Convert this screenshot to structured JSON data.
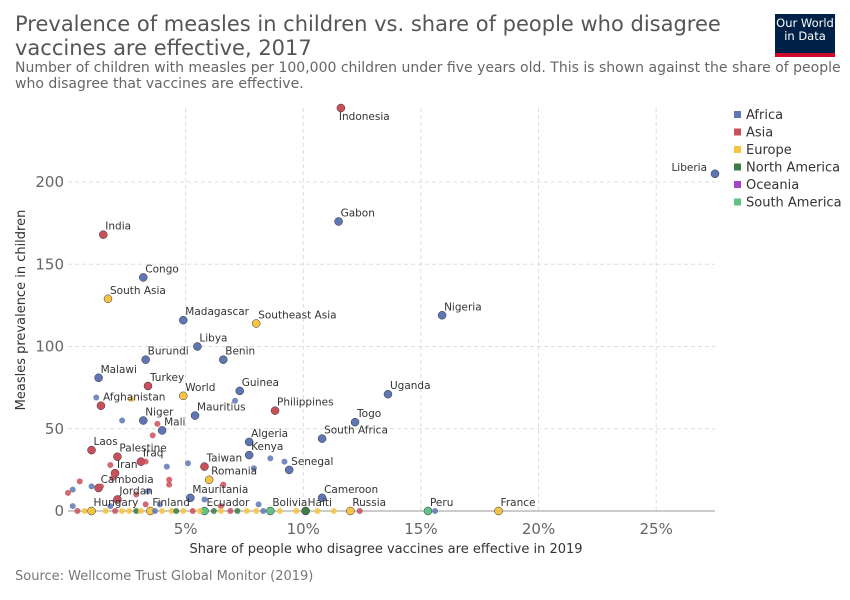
{
  "header": {
    "title_lines": [
      "Prevalence of measles in children vs. share of people who disagree",
      "vaccines are effective, 2017"
    ],
    "subtitle_lines": [
      "Number of children with measles per 100,000 children under five years old. This is shown against the share of people",
      "who disagree that vaccines are effective."
    ],
    "logo_lines": [
      "Our World",
      "in Data"
    ]
  },
  "footer": {
    "source": "Source: Wellcome Trust Global Monitor (2019)"
  },
  "colors": {
    "Africa": "#5e77b4",
    "Asia": "#c9505b",
    "Europe": "#f6c444",
    "North America": "#3f7a48",
    "Oceania": "#a447c6",
    "South America": "#61c287"
  },
  "chart_data": {
    "type": "scatter",
    "xlabel": "Share of people who disagree vaccines are effective in 2019",
    "ylabel": "Measles prevalence in children",
    "xlim": [
      0,
      27.5
    ],
    "ylim": [
      0,
      245
    ],
    "xticks": [
      5,
      10,
      15,
      20,
      25
    ],
    "xtick_labels": [
      "5%",
      "10%",
      "15%",
      "20%",
      "25%"
    ],
    "yticks": [
      0,
      50,
      100,
      150,
      200
    ],
    "ytick_labels": [
      "0",
      "50",
      "100",
      "150",
      "200"
    ],
    "grid": true,
    "legend": [
      "Africa",
      "Asia",
      "Europe",
      "North America",
      "Oceania",
      "South America"
    ],
    "legend_position": "right",
    "points": [
      {
        "label": "Indonesia",
        "x": 11.6,
        "y": 245,
        "region": "Asia",
        "major": true
      },
      {
        "label": "Liberia",
        "x": 27.5,
        "y": 205,
        "region": "Africa",
        "major": true
      },
      {
        "label": "Gabon",
        "x": 11.5,
        "y": 176,
        "region": "Africa",
        "major": true
      },
      {
        "label": "India",
        "x": 1.5,
        "y": 168,
        "region": "Asia",
        "major": true
      },
      {
        "label": "Congo",
        "x": 3.2,
        "y": 142,
        "region": "Africa",
        "major": true
      },
      {
        "label": "South Asia",
        "x": 1.7,
        "y": 129,
        "region": "Europe",
        "major": true
      },
      {
        "label": "Nigeria",
        "x": 15.9,
        "y": 119,
        "region": "Africa",
        "major": true
      },
      {
        "label": "Madagascar",
        "x": 4.9,
        "y": 116,
        "region": "Africa",
        "major": true
      },
      {
        "label": "Southeast Asia",
        "x": 8.0,
        "y": 114,
        "region": "Europe",
        "major": true
      },
      {
        "label": "Libya",
        "x": 5.5,
        "y": 100,
        "region": "Africa",
        "major": true
      },
      {
        "label": "Burundi",
        "x": 3.3,
        "y": 92,
        "region": "Africa",
        "major": true
      },
      {
        "label": "Benin",
        "x": 6.6,
        "y": 92,
        "region": "Africa",
        "major": true
      },
      {
        "label": "Malawi",
        "x": 1.3,
        "y": 81,
        "region": "Africa",
        "major": true
      },
      {
        "label": "Turkey",
        "x": 3.4,
        "y": 76,
        "region": "Asia",
        "major": true
      },
      {
        "label": "Guinea",
        "x": 7.3,
        "y": 73,
        "region": "Africa",
        "major": true
      },
      {
        "label": "Uganda",
        "x": 13.6,
        "y": 71,
        "region": "Africa",
        "major": true
      },
      {
        "label": "World",
        "x": 4.9,
        "y": 70,
        "region": "Europe",
        "major": true
      },
      {
        "label": "Afghanistan",
        "x": 1.4,
        "y": 64,
        "region": "Asia",
        "major": true
      },
      {
        "label": "Philippines",
        "x": 8.8,
        "y": 61,
        "region": "Asia",
        "major": true
      },
      {
        "label": "Mauritius",
        "x": 5.4,
        "y": 58,
        "region": "Africa",
        "major": true
      },
      {
        "label": "Niger",
        "x": 3.2,
        "y": 55,
        "region": "Africa",
        "major": true
      },
      {
        "label": "Togo",
        "x": 12.2,
        "y": 54,
        "region": "Africa",
        "major": true
      },
      {
        "label": "Mali",
        "x": 4.0,
        "y": 49,
        "region": "Africa",
        "major": true
      },
      {
        "label": "South Africa",
        "x": 10.8,
        "y": 44,
        "region": "Africa",
        "major": true
      },
      {
        "label": "Algeria",
        "x": 7.7,
        "y": 42,
        "region": "Africa",
        "major": true
      },
      {
        "label": "Laos",
        "x": 1.0,
        "y": 37,
        "region": "Asia",
        "major": true
      },
      {
        "label": "Kenya",
        "x": 7.7,
        "y": 34,
        "region": "Africa",
        "major": true
      },
      {
        "label": "Palestine",
        "x": 2.1,
        "y": 33,
        "region": "Asia",
        "major": true
      },
      {
        "label": "Iraq",
        "x": 3.1,
        "y": 30,
        "region": "Asia",
        "major": true
      },
      {
        "label": "Taiwan",
        "x": 5.8,
        "y": 27,
        "region": "Asia",
        "major": true
      },
      {
        "label": "Senegal",
        "x": 9.4,
        "y": 25,
        "region": "Africa",
        "major": true
      },
      {
        "label": "Iran",
        "x": 2.0,
        "y": 23,
        "region": "Asia",
        "major": true
      },
      {
        "label": "Romania",
        "x": 6.0,
        "y": 19,
        "region": "Europe",
        "major": true
      },
      {
        "label": "Cambodia",
        "x": 1.3,
        "y": 14,
        "region": "Asia",
        "major": true
      },
      {
        "label": "Jordan",
        "x": 2.1,
        "y": 7,
        "region": "Asia",
        "major": true
      },
      {
        "label": "Mauritania",
        "x": 5.2,
        "y": 8,
        "region": "Africa",
        "major": true
      },
      {
        "label": "Cameroon",
        "x": 10.8,
        "y": 8,
        "region": "Africa",
        "major": true
      },
      {
        "label": "Hungary",
        "x": 1.0,
        "y": 0,
        "region": "Europe",
        "major": true
      },
      {
        "label": "Finland",
        "x": 3.5,
        "y": 0,
        "region": "Europe",
        "major": true
      },
      {
        "label": "Ecuador",
        "x": 5.8,
        "y": 0,
        "region": "South America",
        "major": true
      },
      {
        "label": "Bolivia",
        "x": 8.6,
        "y": 0,
        "region": "South America",
        "major": true
      },
      {
        "label": "Haiti",
        "x": 10.1,
        "y": 0,
        "region": "North America",
        "major": true
      },
      {
        "label": "Russia",
        "x": 12.0,
        "y": 0,
        "region": "Europe",
        "major": true
      },
      {
        "label": "Peru",
        "x": 15.3,
        "y": 0,
        "region": "South America",
        "major": true
      },
      {
        "label": "France",
        "x": 18.3,
        "y": 0,
        "region": "Europe",
        "major": true
      },
      {
        "label": "",
        "x": 2.7,
        "y": 68,
        "region": "Europe",
        "major": false
      },
      {
        "label": "",
        "x": 1.2,
        "y": 69,
        "region": "Africa",
        "major": false
      },
      {
        "label": "",
        "x": 7.1,
        "y": 67,
        "region": "Africa",
        "major": false
      },
      {
        "label": "",
        "x": 2.3,
        "y": 55,
        "region": "Africa",
        "major": false
      },
      {
        "label": "",
        "x": 3.8,
        "y": 53,
        "region": "Asia",
        "major": false
      },
      {
        "label": "",
        "x": 3.6,
        "y": 46,
        "region": "Asia",
        "major": false
      },
      {
        "label": "",
        "x": 3.3,
        "y": 30,
        "region": "Asia",
        "major": false
      },
      {
        "label": "",
        "x": 4.2,
        "y": 27,
        "region": "Africa",
        "major": false
      },
      {
        "label": "",
        "x": 5.1,
        "y": 29,
        "region": "Africa",
        "major": false
      },
      {
        "label": "",
        "x": 8.6,
        "y": 32,
        "region": "Africa",
        "major": false
      },
      {
        "label": "",
        "x": 9.2,
        "y": 30,
        "region": "Africa",
        "major": false
      },
      {
        "label": "",
        "x": 7.9,
        "y": 26,
        "region": "Africa",
        "major": false
      },
      {
        "label": "",
        "x": 1.8,
        "y": 28,
        "region": "Asia",
        "major": false
      },
      {
        "label": "",
        "x": 0.5,
        "y": 18,
        "region": "Asia",
        "major": false
      },
      {
        "label": "",
        "x": 1.9,
        "y": 20,
        "region": "Asia",
        "major": false
      },
      {
        "label": "",
        "x": 4.3,
        "y": 19,
        "region": "Asia",
        "major": false
      },
      {
        "label": "",
        "x": 4.3,
        "y": 16,
        "region": "Asia",
        "major": false
      },
      {
        "label": "",
        "x": 6.6,
        "y": 16,
        "region": "Asia",
        "major": false
      },
      {
        "label": "",
        "x": 0.2,
        "y": 13,
        "region": "Africa",
        "major": false
      },
      {
        "label": "",
        "x": 1.0,
        "y": 15,
        "region": "Africa",
        "major": false
      },
      {
        "label": "",
        "x": 0.0,
        "y": 11,
        "region": "Asia",
        "major": false
      },
      {
        "label": "",
        "x": 1.4,
        "y": 15,
        "region": "Asia",
        "major": false
      },
      {
        "label": "",
        "x": 3.4,
        "y": 12,
        "region": "Africa",
        "major": false
      },
      {
        "label": "",
        "x": 2.9,
        "y": 10,
        "region": "Asia",
        "major": false
      },
      {
        "label": "",
        "x": 0.2,
        "y": 3,
        "region": "Africa",
        "major": false
      },
      {
        "label": "",
        "x": 1.8,
        "y": 3,
        "region": "Africa",
        "major": false
      },
      {
        "label": "",
        "x": 3.3,
        "y": 4,
        "region": "Asia",
        "major": false
      },
      {
        "label": "",
        "x": 3.9,
        "y": 4,
        "region": "Africa",
        "major": false
      },
      {
        "label": "",
        "x": 5.8,
        "y": 7,
        "region": "Africa",
        "major": false
      },
      {
        "label": "",
        "x": 6.5,
        "y": 3,
        "region": "Asia",
        "major": false
      },
      {
        "label": "",
        "x": 8.1,
        "y": 4,
        "region": "Africa",
        "major": false
      },
      {
        "label": "",
        "x": 0.4,
        "y": 0,
        "region": "Asia",
        "major": false
      },
      {
        "label": "",
        "x": 0.7,
        "y": 0,
        "region": "Europe",
        "major": false
      },
      {
        "label": "",
        "x": 1.6,
        "y": 0,
        "region": "Europe",
        "major": false
      },
      {
        "label": "",
        "x": 2.0,
        "y": 0,
        "region": "Asia",
        "major": false
      },
      {
        "label": "",
        "x": 2.3,
        "y": 0,
        "region": "Europe",
        "major": false
      },
      {
        "label": "",
        "x": 2.6,
        "y": 0,
        "region": "Europe",
        "major": false
      },
      {
        "label": "",
        "x": 2.9,
        "y": 0,
        "region": "North America",
        "major": false
      },
      {
        "label": "",
        "x": 3.1,
        "y": 0,
        "region": "Europe",
        "major": false
      },
      {
        "label": "",
        "x": 3.7,
        "y": 0,
        "region": "Africa",
        "major": false
      },
      {
        "label": "",
        "x": 4.0,
        "y": 0,
        "region": "Europe",
        "major": false
      },
      {
        "label": "",
        "x": 4.4,
        "y": 0,
        "region": "Europe",
        "major": false
      },
      {
        "label": "",
        "x": 4.6,
        "y": 0,
        "region": "North America",
        "major": false
      },
      {
        "label": "",
        "x": 4.9,
        "y": 0,
        "region": "Europe",
        "major": false
      },
      {
        "label": "",
        "x": 5.3,
        "y": 0,
        "region": "Asia",
        "major": false
      },
      {
        "label": "",
        "x": 5.6,
        "y": 0,
        "region": "Europe",
        "major": false
      },
      {
        "label": "",
        "x": 6.2,
        "y": 0,
        "region": "North America",
        "major": false
      },
      {
        "label": "",
        "x": 6.5,
        "y": 0,
        "region": "Europe",
        "major": false
      },
      {
        "label": "",
        "x": 6.9,
        "y": 0,
        "region": "Asia",
        "major": false
      },
      {
        "label": "",
        "x": 7.2,
        "y": 0,
        "region": "North America",
        "major": false
      },
      {
        "label": "",
        "x": 7.6,
        "y": 0,
        "region": "Europe",
        "major": false
      },
      {
        "label": "",
        "x": 8.0,
        "y": 0,
        "region": "Europe",
        "major": false
      },
      {
        "label": "",
        "x": 8.3,
        "y": 0,
        "region": "Africa",
        "major": false
      },
      {
        "label": "",
        "x": 9.0,
        "y": 0,
        "region": "Europe",
        "major": false
      },
      {
        "label": "",
        "x": 9.7,
        "y": 0,
        "region": "Europe",
        "major": false
      },
      {
        "label": "",
        "x": 10.6,
        "y": 0,
        "region": "Europe",
        "major": false
      },
      {
        "label": "",
        "x": 11.3,
        "y": 0,
        "region": "Europe",
        "major": false
      },
      {
        "label": "",
        "x": 12.4,
        "y": 0,
        "region": "Asia",
        "major": false
      },
      {
        "label": "",
        "x": 15.6,
        "y": 0,
        "region": "Africa",
        "major": false
      }
    ]
  }
}
